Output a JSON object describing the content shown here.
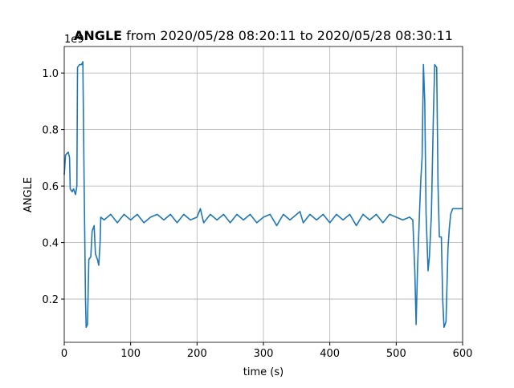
{
  "chart_data": {
    "type": "line",
    "title_bold": "ANGLE",
    "title": "from 2020/05/28 08:20:11 to 2020/05/28 08:30:11",
    "x_label": "time (s)",
    "y_label": "ANGLE",
    "y_offset_text": "1e9",
    "xlim": [
      0,
      600
    ],
    "ylim": [
      0.047,
      1.094
    ],
    "xticks": [
      0,
      100,
      200,
      300,
      400,
      500,
      600
    ],
    "yticks": [
      0.2,
      0.4,
      0.6,
      0.8,
      {
        "value": 1,
        "label": "1.0"
      }
    ],
    "grid": true,
    "series": [
      {
        "color": "#1f77b4",
        "x": [
          0,
          2,
          6,
          8,
          9,
          12,
          14,
          17,
          19,
          20,
          23,
          26,
          28,
          30,
          32,
          33,
          35,
          37,
          40,
          42,
          45,
          47,
          50,
          52,
          54,
          55,
          60,
          70,
          80,
          90,
          100,
          110,
          120,
          130,
          140,
          150,
          160,
          170,
          180,
          190,
          200,
          205,
          210,
          220,
          230,
          240,
          250,
          260,
          270,
          280,
          290,
          300,
          310,
          320,
          330,
          340,
          350,
          355,
          360,
          370,
          380,
          390,
          400,
          410,
          420,
          430,
          440,
          450,
          460,
          470,
          480,
          490,
          500,
          510,
          520,
          525,
          528,
          530,
          532,
          535,
          537,
          539,
          541,
          543,
          545,
          548,
          550,
          553,
          556,
          558,
          561,
          563,
          565,
          568,
          570,
          572,
          575,
          578,
          580,
          582,
          585,
          590,
          600
        ],
        "values": [
          0.64,
          0.71,
          0.72,
          0.7,
          0.59,
          0.58,
          0.59,
          0.57,
          0.6,
          1.02,
          1.03,
          1.03,
          1.04,
          0.6,
          0.2,
          0.1,
          0.11,
          0.34,
          0.35,
          0.44,
          0.46,
          0.36,
          0.34,
          0.32,
          0.4,
          0.49,
          0.48,
          0.5,
          0.47,
          0.5,
          0.48,
          0.5,
          0.47,
          0.49,
          0.5,
          0.48,
          0.5,
          0.47,
          0.5,
          0.48,
          0.49,
          0.52,
          0.47,
          0.5,
          0.48,
          0.5,
          0.47,
          0.5,
          0.48,
          0.5,
          0.47,
          0.49,
          0.5,
          0.46,
          0.5,
          0.48,
          0.5,
          0.51,
          0.47,
          0.5,
          0.48,
          0.5,
          0.47,
          0.5,
          0.48,
          0.5,
          0.46,
          0.5,
          0.48,
          0.5,
          0.47,
          0.5,
          0.49,
          0.48,
          0.49,
          0.48,
          0.3,
          0.11,
          0.3,
          0.5,
          0.62,
          0.7,
          1.03,
          0.9,
          0.5,
          0.3,
          0.35,
          0.5,
          0.85,
          1.03,
          1.02,
          0.6,
          0.42,
          0.42,
          0.2,
          0.1,
          0.12,
          0.38,
          0.45,
          0.5,
          0.52,
          0.52,
          0.52
        ]
      }
    ]
  }
}
